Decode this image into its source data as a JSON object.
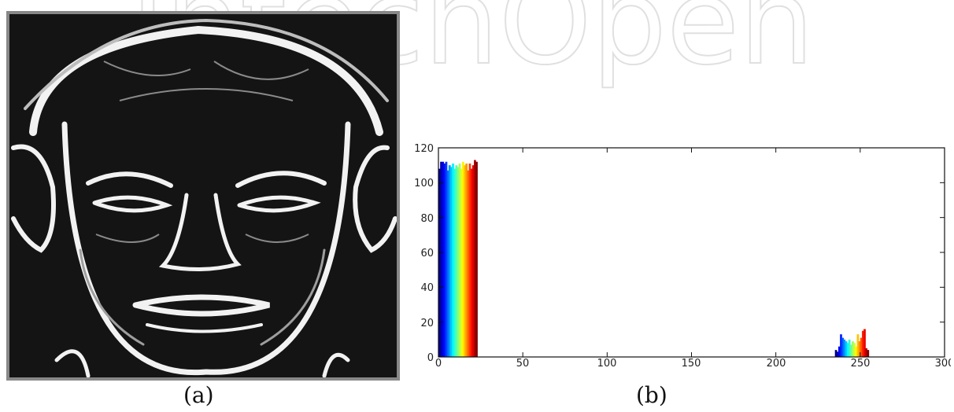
{
  "watermark": {
    "text": "IntechOpen"
  },
  "panel_a": {
    "caption": "(a)"
  },
  "panel_b": {
    "caption": "(b)"
  },
  "chart_data": {
    "type": "bar",
    "x_ticks": [
      "0",
      "50",
      "100",
      "150",
      "200",
      "250",
      "300"
    ],
    "y_ticks": [
      "0",
      "20",
      "40",
      "60",
      "80",
      "100",
      "120"
    ],
    "xlim": [
      0,
      300
    ],
    "ylim": [
      0,
      120
    ],
    "grid": false,
    "colormap": "jet",
    "bins": [
      {
        "x": 0,
        "y": 108
      },
      {
        "x": 1,
        "y": 112
      },
      {
        "x": 2,
        "y": 112
      },
      {
        "x": 3,
        "y": 111
      },
      {
        "x": 4,
        "y": 112
      },
      {
        "x": 5,
        "y": 107
      },
      {
        "x": 6,
        "y": 110
      },
      {
        "x": 7,
        "y": 109
      },
      {
        "x": 8,
        "y": 111
      },
      {
        "x": 9,
        "y": 108
      },
      {
        "x": 10,
        "y": 110
      },
      {
        "x": 11,
        "y": 109
      },
      {
        "x": 12,
        "y": 111
      },
      {
        "x": 13,
        "y": 108
      },
      {
        "x": 14,
        "y": 112
      },
      {
        "x": 15,
        "y": 110
      },
      {
        "x": 16,
        "y": 111
      },
      {
        "x": 17,
        "y": 107
      },
      {
        "x": 18,
        "y": 111
      },
      {
        "x": 19,
        "y": 108
      },
      {
        "x": 20,
        "y": 110
      },
      {
        "x": 21,
        "y": 113
      },
      {
        "x": 22,
        "y": 112
      },
      {
        "x": 235,
        "y": 4
      },
      {
        "x": 236,
        "y": 3
      },
      {
        "x": 237,
        "y": 6
      },
      {
        "x": 238,
        "y": 13
      },
      {
        "x": 239,
        "y": 11
      },
      {
        "x": 240,
        "y": 10
      },
      {
        "x": 241,
        "y": 9
      },
      {
        "x": 242,
        "y": 8
      },
      {
        "x": 243,
        "y": 10
      },
      {
        "x": 244,
        "y": 7
      },
      {
        "x": 245,
        "y": 9
      },
      {
        "x": 246,
        "y": 8
      },
      {
        "x": 247,
        "y": 6
      },
      {
        "x": 248,
        "y": 13
      },
      {
        "x": 249,
        "y": 9
      },
      {
        "x": 250,
        "y": 11
      },
      {
        "x": 251,
        "y": 15
      },
      {
        "x": 252,
        "y": 16
      },
      {
        "x": 253,
        "y": 5
      },
      {
        "x": 254,
        "y": 4
      }
    ]
  }
}
